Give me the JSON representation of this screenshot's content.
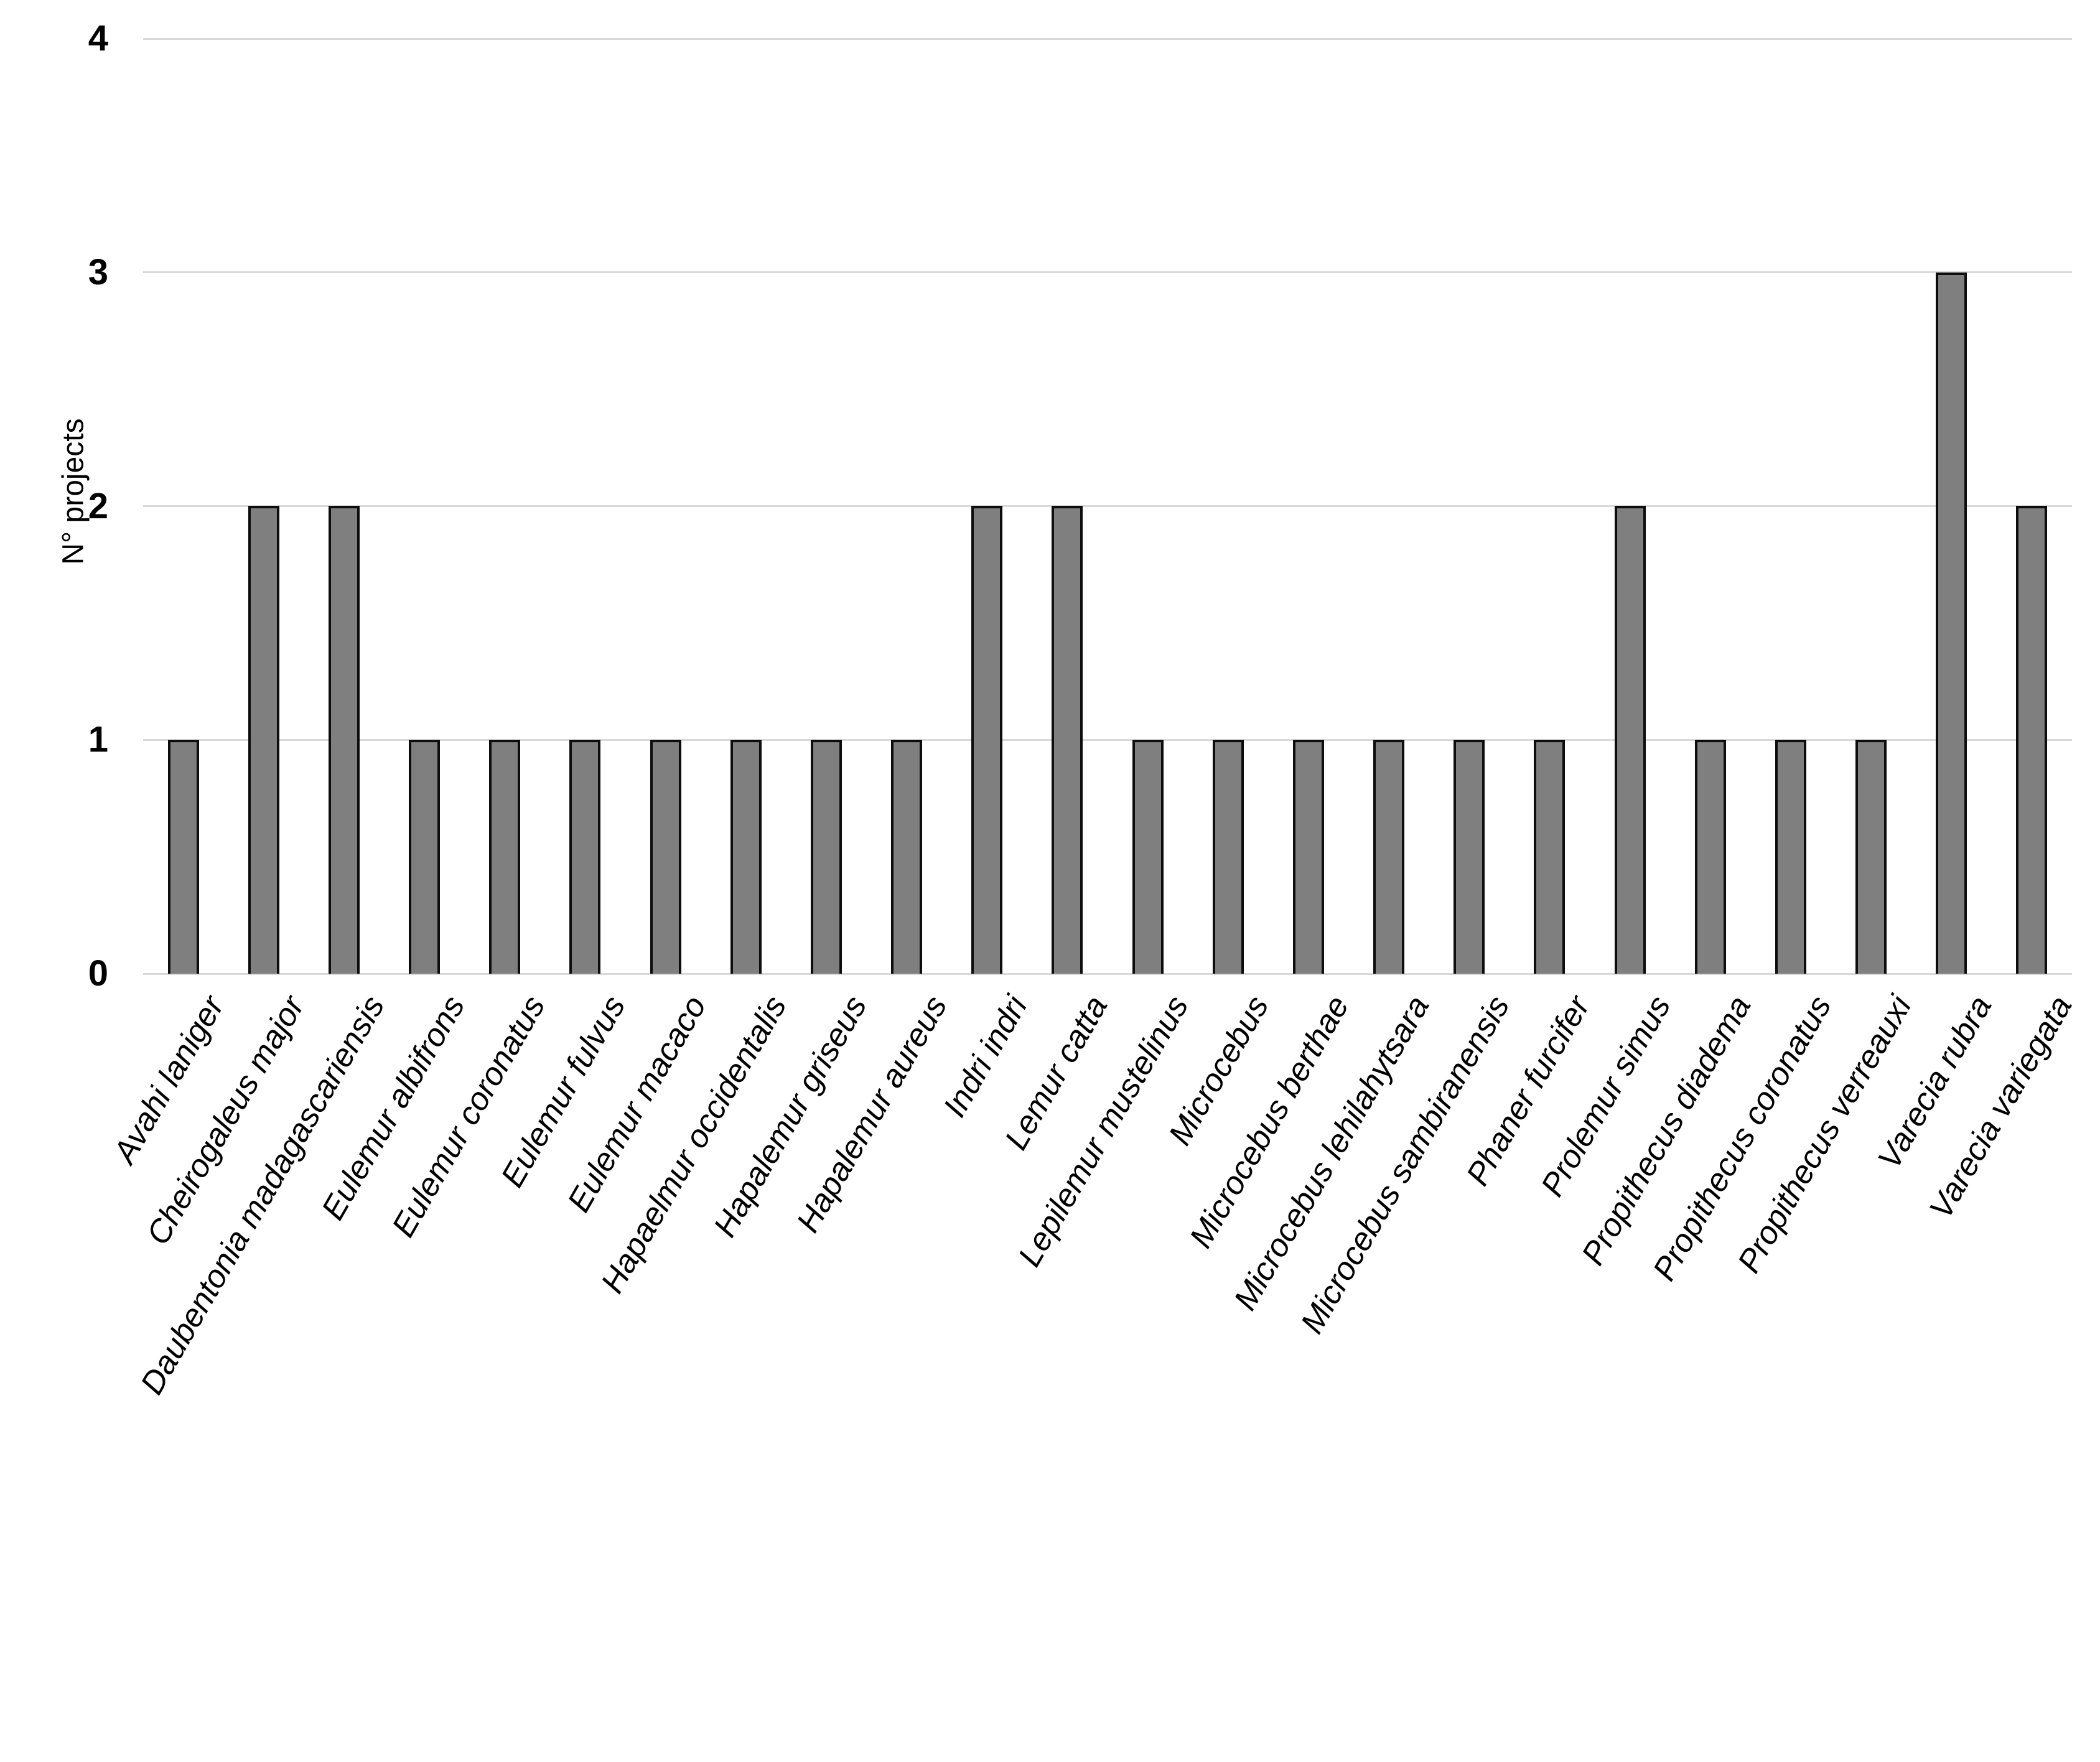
{
  "chart_data": {
    "type": "bar",
    "title": "",
    "xlabel": "",
    "ylabel": "N° projects",
    "ylim": [
      0,
      4
    ],
    "yticks": [
      0,
      1,
      2,
      3,
      4
    ],
    "grid": "horizontal",
    "legend": "none",
    "bar_fill_color": "#7F7F7F",
    "bar_border_color": "#0D0D0D",
    "gridline_color": "#D9D9D9",
    "text_color": "#000000",
    "x_label_style": "italic, rotated 60 degrees",
    "categories": [
      "Avahi laniger",
      "Cheirogaleus major",
      "Daubentonia madagascariensis",
      "Eulemur albifrons",
      "Eulemur coronatus",
      "Eulemur fulvus",
      "Eulemur macaco",
      "Hapaelmur occidentalis",
      "Hapalemur griseus",
      "Hapalemur aureus",
      "Indri indri",
      "Lemur catta",
      "Lepilemur mustelinus",
      "Microcebus",
      "Microcebus berthae",
      "Microcebus lehilahytsara",
      "Microcebus sambiranensis",
      "Phaner furcifer",
      "Prolemur simus",
      "Propithecus diadema",
      "Propithecus coronatus",
      "Propithecus verreauxi",
      "Varecia rubra",
      "Varecia variegata"
    ],
    "values": [
      1,
      2,
      2,
      1,
      1,
      1,
      1,
      1,
      1,
      1,
      2,
      2,
      1,
      1,
      1,
      1,
      1,
      1,
      2,
      1,
      1,
      1,
      3,
      2
    ]
  }
}
